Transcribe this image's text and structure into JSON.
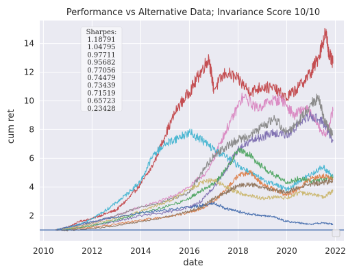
{
  "chart_data": {
    "type": "line",
    "title": "Performance vs Alternative Data; Invariance Score 10/10",
    "xlabel": "date",
    "ylabel": "cum ret",
    "xlim": [
      2009.85,
      2022.35
    ],
    "ylim": [
      0.25,
      15.6
    ],
    "xticks": [
      2010,
      2012,
      2014,
      2016,
      2018,
      2020,
      2022
    ],
    "xtick_labels": [
      "2010",
      "2012",
      "2014",
      "2016",
      "2018",
      "2020",
      "2022"
    ],
    "yticks": [
      2,
      4,
      6,
      8,
      10,
      12,
      14
    ],
    "ytick_labels": [
      "2",
      "4",
      "6",
      "8",
      "10",
      "12",
      "14"
    ],
    "grid": true,
    "background": "#eaeaf2",
    "baseline": {
      "y": 1.0,
      "color": "#4c72b0"
    },
    "sharpes_title": "Sharpes:",
    "sharpes": [
      "1.18791",
      "1.04795",
      "0.97711",
      "0.95682",
      "0.77056",
      "0.74479",
      "0.73439",
      "0.71519",
      "0.65723",
      "0.23428"
    ],
    "legend": "empty box, bottom-right",
    "series": [
      {
        "color": "#c44e52",
        "x": [
          2010.5,
          2011,
          2011.5,
          2012,
          2012.5,
          2013,
          2013.5,
          2014,
          2014.5,
          2015,
          2015.5,
          2016,
          2016.4,
          2016.8,
          2017,
          2017.5,
          2018,
          2018.5,
          2019,
          2019.5,
          2020,
          2020.5,
          2021,
          2021.3,
          2021.6,
          2021.75,
          2021.9
        ],
        "y": [
          1.0,
          1.2,
          1.6,
          1.8,
          2.1,
          2.4,
          3.2,
          4.2,
          5.5,
          7.6,
          9.5,
          10.6,
          11.8,
          13.0,
          10.8,
          12.0,
          11.5,
          10.6,
          11.0,
          10.8,
          10.2,
          11.0,
          12.0,
          13.0,
          14.8,
          13.2,
          12.6
        ]
      },
      {
        "color": "#da8bc3",
        "x": [
          2010.5,
          2011,
          2012,
          2013,
          2014,
          2015,
          2016,
          2016.8,
          2017.3,
          2017.7,
          2018.2,
          2018.8,
          2019.3,
          2019.8,
          2020.3,
          2020.8,
          2021.2,
          2021.6,
          2021.9
        ],
        "y": [
          1.0,
          1.1,
          1.5,
          2.0,
          2.6,
          3.1,
          4.0,
          5.2,
          7.2,
          8.6,
          10.3,
          9.5,
          10.0,
          10.1,
          9.0,
          9.5,
          8.5,
          7.5,
          9.3
        ]
      },
      {
        "color": "#4cb7d2",
        "x": [
          2010.5,
          2011,
          2011.5,
          2012,
          2012.5,
          2013,
          2013.5,
          2014,
          2014.5,
          2015,
          2015.5,
          2016,
          2016.5,
          2017,
          2017.5,
          2018,
          2018.5,
          2019,
          2019.5,
          2020,
          2020.5,
          2021,
          2021.5,
          2021.9
        ],
        "y": [
          1.0,
          1.15,
          1.4,
          1.8,
          2.3,
          2.9,
          3.6,
          4.4,
          6.2,
          7.0,
          7.4,
          7.8,
          7.3,
          6.6,
          6.1,
          5.5,
          5.0,
          4.5,
          4.2,
          3.8,
          4.4,
          4.9,
          5.4,
          4.7
        ]
      },
      {
        "color": "#8172b2",
        "x": [
          2010.5,
          2011,
          2012,
          2013,
          2014,
          2015,
          2016,
          2016.5,
          2017,
          2017.5,
          2018,
          2018.5,
          2019,
          2019.5,
          2020,
          2020.5,
          2021,
          2021.5,
          2021.9
        ],
        "y": [
          1.0,
          1.05,
          1.3,
          1.6,
          2.0,
          2.2,
          2.6,
          3.0,
          4.0,
          5.2,
          6.6,
          7.2,
          7.5,
          7.8,
          7.6,
          8.4,
          9.0,
          8.5,
          7.2
        ]
      },
      {
        "color": "#8c8c8c",
        "x": [
          2010.5,
          2011,
          2012,
          2013,
          2014,
          2015,
          2016,
          2016.5,
          2017,
          2017.5,
          2018,
          2018.5,
          2019,
          2019.5,
          2020,
          2020.5,
          2021,
          2021.3,
          2021.6,
          2021.9
        ],
        "y": [
          1.0,
          1.1,
          1.5,
          2.0,
          2.6,
          3.0,
          3.6,
          5.0,
          6.2,
          6.8,
          7.3,
          7.6,
          8.2,
          8.8,
          7.8,
          8.6,
          9.8,
          10.2,
          8.4,
          7.6
        ]
      },
      {
        "color": "#55a868",
        "x": [
          2010.5,
          2011,
          2012,
          2013,
          2014,
          2015,
          2016,
          2016.5,
          2017,
          2017.5,
          2018,
          2018.5,
          2019,
          2019.5,
          2020,
          2020.5,
          2021,
          2021.5,
          2021.9
        ],
        "y": [
          1.0,
          1.05,
          1.3,
          1.7,
          2.2,
          2.6,
          3.2,
          3.8,
          4.2,
          5.2,
          6.6,
          6.2,
          5.4,
          4.8,
          4.3,
          4.6,
          4.4,
          4.5,
          4.7
        ]
      },
      {
        "color": "#dd8452",
        "x": [
          2010.5,
          2011,
          2012,
          2013,
          2014,
          2015,
          2016,
          2016.5,
          2017,
          2017.5,
          2018,
          2018.5,
          2019,
          2019.5,
          2020,
          2020.5,
          2021,
          2021.5,
          2021.9
        ],
        "y": [
          1.0,
          1.0,
          1.2,
          1.4,
          1.7,
          1.9,
          2.2,
          2.5,
          3.0,
          3.8,
          4.8,
          5.0,
          4.2,
          3.8,
          3.4,
          3.9,
          4.6,
          4.8,
          4.5
        ]
      },
      {
        "color": "#ccb974",
        "x": [
          2010.5,
          2011,
          2012,
          2013,
          2014,
          2015,
          2016,
          2016.5,
          2017,
          2017.5,
          2018,
          2018.5,
          2019,
          2019.5,
          2020,
          2020.5,
          2021,
          2021.5,
          2021.9
        ],
        "y": [
          1.0,
          1.1,
          1.4,
          1.8,
          2.3,
          2.9,
          3.8,
          4.3,
          4.5,
          4.0,
          3.6,
          3.4,
          3.2,
          3.3,
          3.2,
          3.6,
          3.5,
          3.3,
          3.7
        ]
      },
      {
        "color": "#4c72b0",
        "x": [
          2010.5,
          2011,
          2012,
          2013,
          2014,
          2015,
          2016,
          2016.5,
          2017,
          2017.5,
          2018,
          2018.5,
          2019,
          2019.5,
          2020,
          2020.5,
          2021,
          2021.5,
          2021.9
        ],
        "y": [
          1.0,
          1.2,
          1.6,
          1.9,
          2.2,
          2.4,
          2.6,
          2.7,
          2.9,
          2.5,
          2.3,
          2.1,
          2.0,
          1.9,
          1.6,
          1.5,
          1.4,
          1.5,
          1.4
        ]
      },
      {
        "color": "#937860",
        "x": [
          2010.5,
          2011,
          2012,
          2013,
          2014,
          2015,
          2016,
          2016.5,
          2017,
          2017.5,
          2018,
          2018.5,
          2019,
          2019.5,
          2020,
          2020.5,
          2021,
          2021.5,
          2021.9
        ],
        "y": [
          1.0,
          0.95,
          1.1,
          1.3,
          1.6,
          1.9,
          2.3,
          2.6,
          3.2,
          3.6,
          4.1,
          4.2,
          4.0,
          3.8,
          3.6,
          4.0,
          4.2,
          4.3,
          4.4
        ]
      }
    ]
  }
}
